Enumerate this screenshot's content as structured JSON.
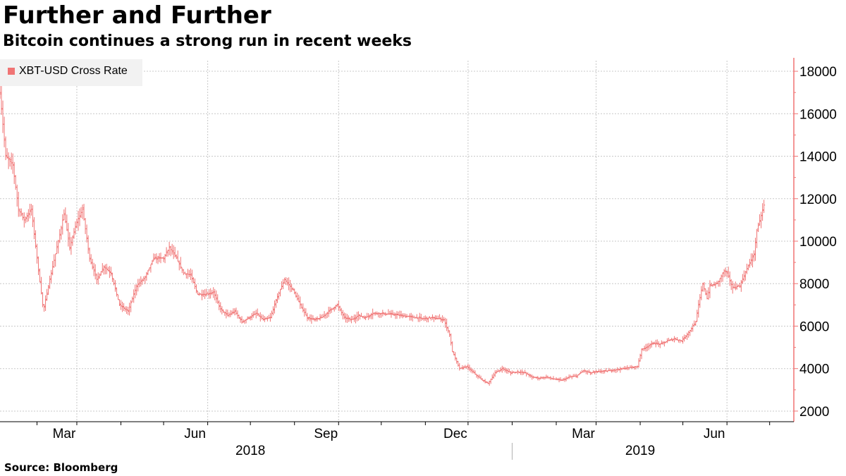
{
  "title": "Further and Further",
  "subtitle": "Bitcoin continues a strong run in recent weeks",
  "source": "Source:  Bloomberg",
  "colors": {
    "series": "#f07474",
    "axis_right": "#f07474",
    "grid": "#c8c8c8",
    "legend_bg": "#f2f2f2"
  },
  "chart_data": {
    "type": "ohlc",
    "title": "Further and Further",
    "subtitle": "Bitcoin continues a strong run in recent weeks",
    "legend": {
      "entries": [
        "XBT-USD Cross Rate"
      ],
      "placement": "top-left"
    },
    "y_axis": {
      "side": "right",
      "ticks": [
        2000,
        4000,
        6000,
        8000,
        10000,
        12000,
        14000,
        16000,
        18000
      ],
      "range": [
        1500,
        18500
      ]
    },
    "x_axis": {
      "range": [
        "2018-01-06",
        "2019-07-18"
      ],
      "month_labels": [
        {
          "label": "Mar",
          "date": "2018-03-01"
        },
        {
          "label": "Jun",
          "date": "2018-06-01"
        },
        {
          "label": "Sep",
          "date": "2018-09-01"
        },
        {
          "label": "Dec",
          "date": "2018-12-01"
        },
        {
          "label": "Mar",
          "date": "2019-03-01"
        },
        {
          "label": "Jun",
          "date": "2019-06-01"
        }
      ],
      "year_labels": [
        {
          "label": "2018",
          "date": "2018-07-01"
        },
        {
          "label": "2019",
          "date": "2019-04-01"
        }
      ],
      "year_divider": "2019-01-01",
      "minor_ticks_monthly": true
    },
    "grid": true,
    "series": [
      {
        "name": "XBT-USD Cross Rate",
        "points": [
          [
            "2018-01-06",
            17000
          ],
          [
            "2018-01-10",
            14000
          ],
          [
            "2018-01-15",
            13600
          ],
          [
            "2018-01-19",
            11500
          ],
          [
            "2018-01-23",
            11000
          ],
          [
            "2018-01-28",
            11500
          ],
          [
            "2018-02-01",
            9200
          ],
          [
            "2018-02-05",
            7000
          ],
          [
            "2018-02-06",
            6900
          ],
          [
            "2018-02-10",
            8200
          ],
          [
            "2018-02-16",
            10000
          ],
          [
            "2018-02-20",
            11300
          ],
          [
            "2018-02-24",
            9700
          ],
          [
            "2018-03-01",
            10900
          ],
          [
            "2018-03-05",
            11500
          ],
          [
            "2018-03-10",
            9200
          ],
          [
            "2018-03-15",
            8200
          ],
          [
            "2018-03-20",
            8800
          ],
          [
            "2018-03-25",
            8500
          ],
          [
            "2018-03-31",
            7000
          ],
          [
            "2018-04-06",
            6700
          ],
          [
            "2018-04-12",
            7900
          ],
          [
            "2018-04-18",
            8300
          ],
          [
            "2018-04-24",
            9200
          ],
          [
            "2018-05-01",
            9200
          ],
          [
            "2018-05-05",
            9700
          ],
          [
            "2018-05-10",
            9200
          ],
          [
            "2018-05-15",
            8500
          ],
          [
            "2018-05-20",
            8400
          ],
          [
            "2018-05-25",
            7500
          ],
          [
            "2018-05-31",
            7500
          ],
          [
            "2018-06-05",
            7600
          ],
          [
            "2018-06-10",
            6800
          ],
          [
            "2018-06-15",
            6500
          ],
          [
            "2018-06-20",
            6700
          ],
          [
            "2018-06-25",
            6200
          ],
          [
            "2018-06-30",
            6400
          ],
          [
            "2018-07-05",
            6600
          ],
          [
            "2018-07-10",
            6300
          ],
          [
            "2018-07-15",
            6400
          ],
          [
            "2018-07-20",
            7400
          ],
          [
            "2018-07-25",
            8200
          ],
          [
            "2018-07-31",
            7700
          ],
          [
            "2018-08-05",
            7000
          ],
          [
            "2018-08-10",
            6400
          ],
          [
            "2018-08-15",
            6300
          ],
          [
            "2018-08-20",
            6400
          ],
          [
            "2018-08-25",
            6700
          ],
          [
            "2018-08-31",
            7000
          ],
          [
            "2018-09-05",
            6400
          ],
          [
            "2018-09-10",
            6300
          ],
          [
            "2018-09-15",
            6500
          ],
          [
            "2018-09-20",
            6400
          ],
          [
            "2018-09-25",
            6600
          ],
          [
            "2018-09-30",
            6600
          ],
          [
            "2018-10-10",
            6550
          ],
          [
            "2018-10-20",
            6450
          ],
          [
            "2018-10-31",
            6350
          ],
          [
            "2018-11-05",
            6400
          ],
          [
            "2018-11-10",
            6350
          ],
          [
            "2018-11-14",
            6300
          ],
          [
            "2018-11-18",
            5600
          ],
          [
            "2018-11-20",
            4800
          ],
          [
            "2018-11-25",
            4000
          ],
          [
            "2018-11-30",
            4100
          ],
          [
            "2018-12-05",
            3800
          ],
          [
            "2018-12-10",
            3500
          ],
          [
            "2018-12-15",
            3300
          ],
          [
            "2018-12-20",
            3800
          ],
          [
            "2018-12-25",
            4000
          ],
          [
            "2018-12-31",
            3800
          ],
          [
            "2019-01-05",
            3850
          ],
          [
            "2019-01-10",
            3800
          ],
          [
            "2019-01-15",
            3600
          ],
          [
            "2019-01-20",
            3550
          ],
          [
            "2019-01-25",
            3600
          ],
          [
            "2019-01-31",
            3500
          ],
          [
            "2019-02-05",
            3450
          ],
          [
            "2019-02-10",
            3600
          ],
          [
            "2019-02-15",
            3650
          ],
          [
            "2019-02-20",
            3900
          ],
          [
            "2019-02-25",
            3800
          ],
          [
            "2019-03-01",
            3850
          ],
          [
            "2019-03-10",
            3900
          ],
          [
            "2019-03-20",
            4000
          ],
          [
            "2019-03-30",
            4100
          ],
          [
            "2019-04-02",
            4900
          ],
          [
            "2019-04-05",
            5000
          ],
          [
            "2019-04-10",
            5200
          ],
          [
            "2019-04-15",
            5150
          ],
          [
            "2019-04-20",
            5300
          ],
          [
            "2019-04-25",
            5400
          ],
          [
            "2019-04-30",
            5300
          ],
          [
            "2019-05-05",
            5700
          ],
          [
            "2019-05-10",
            6200
          ],
          [
            "2019-05-12",
            7000
          ],
          [
            "2019-05-15",
            8000
          ],
          [
            "2019-05-18",
            7300
          ],
          [
            "2019-05-20",
            7900
          ],
          [
            "2019-05-25",
            8000
          ],
          [
            "2019-05-30",
            8600
          ],
          [
            "2019-06-01",
            8500
          ],
          [
            "2019-06-05",
            7800
          ],
          [
            "2019-06-10",
            7900
          ],
          [
            "2019-06-15",
            8700
          ],
          [
            "2019-06-20",
            9400
          ],
          [
            "2019-06-22",
            10500
          ],
          [
            "2019-06-25",
            11200
          ],
          [
            "2019-06-27",
            11700
          ]
        ]
      }
    ]
  }
}
